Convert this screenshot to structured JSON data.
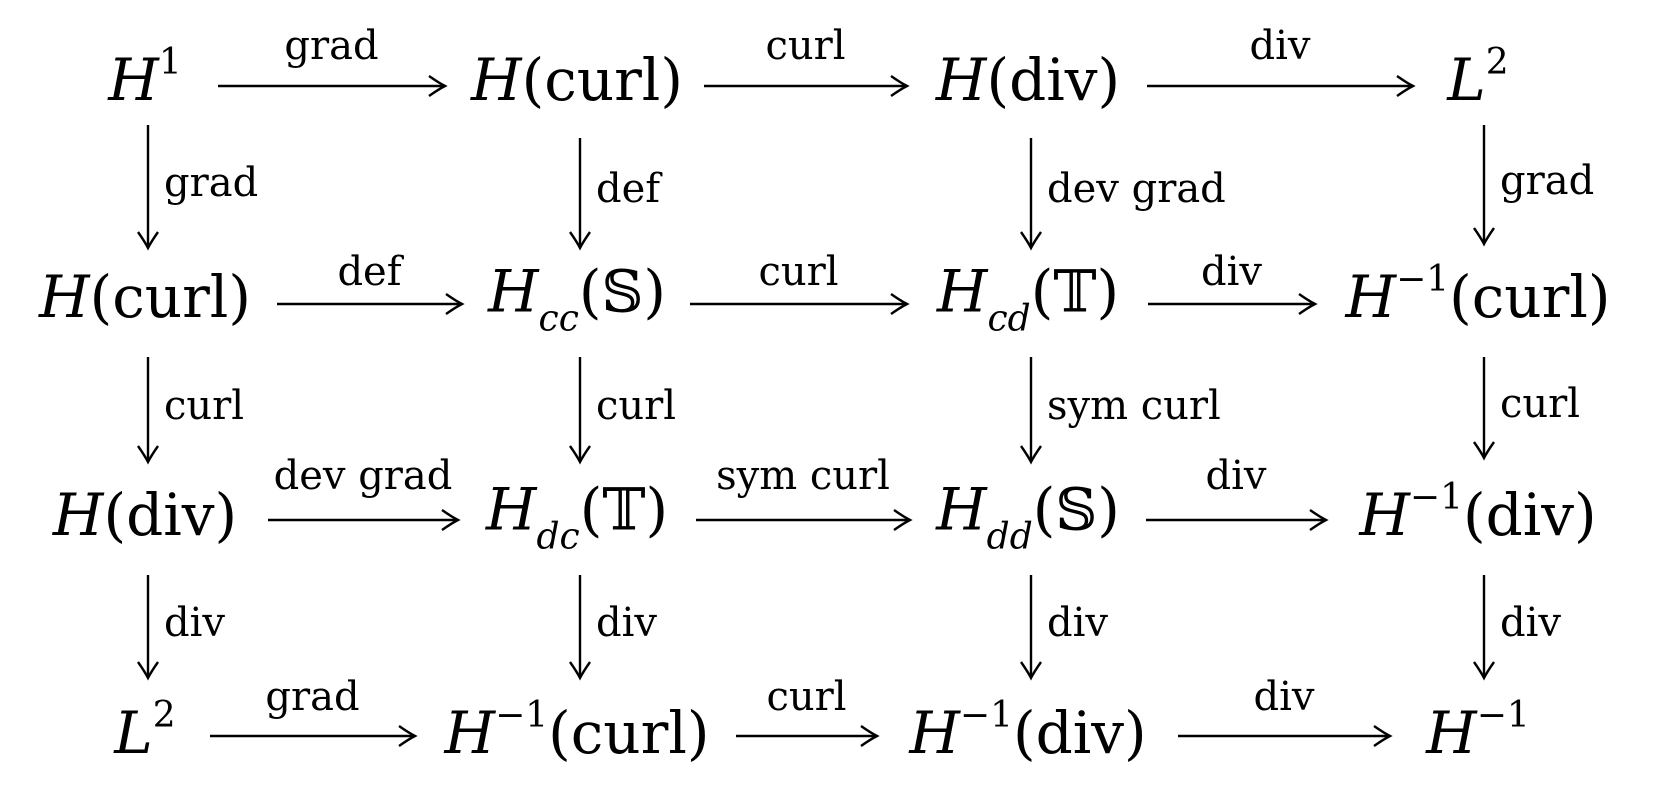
{
  "nodes": [
    {
      "id": "n00",
      "parts": [
        [
          "i",
          "H"
        ],
        [
          "sup",
          "1"
        ]
      ]
    },
    {
      "id": "n01",
      "parts": [
        [
          "i",
          "H"
        ],
        [
          "r",
          "(curl)"
        ]
      ]
    },
    {
      "id": "n02",
      "parts": [
        [
          "i",
          "H"
        ],
        [
          "r",
          "(div)"
        ]
      ]
    },
    {
      "id": "n03",
      "parts": [
        [
          "i",
          "L"
        ],
        [
          "sup",
          "2"
        ]
      ]
    },
    {
      "id": "n10",
      "parts": [
        [
          "i",
          "H"
        ],
        [
          "r",
          "(curl)"
        ]
      ]
    },
    {
      "id": "n11",
      "parts": [
        [
          "i",
          "H"
        ],
        [
          "sub",
          "cc"
        ],
        [
          "r",
          "(𝕊)"
        ]
      ]
    },
    {
      "id": "n12",
      "parts": [
        [
          "i",
          "H"
        ],
        [
          "sub",
          "cd"
        ],
        [
          "r",
          "(𝕋)"
        ]
      ]
    },
    {
      "id": "n13",
      "parts": [
        [
          "i",
          "H"
        ],
        [
          "sup",
          "−1"
        ],
        [
          "r",
          "(curl)"
        ]
      ]
    },
    {
      "id": "n20",
      "parts": [
        [
          "i",
          "H"
        ],
        [
          "r",
          "(div)"
        ]
      ]
    },
    {
      "id": "n21",
      "parts": [
        [
          "i",
          "H"
        ],
        [
          "sub",
          "dc"
        ],
        [
          "r",
          "(𝕋)"
        ]
      ]
    },
    {
      "id": "n22",
      "parts": [
        [
          "i",
          "H"
        ],
        [
          "sub",
          "dd"
        ],
        [
          "r",
          "(𝕊)"
        ]
      ]
    },
    {
      "id": "n23",
      "parts": [
        [
          "i",
          "H"
        ],
        [
          "sup",
          "−1"
        ],
        [
          "r",
          "(div)"
        ]
      ]
    },
    {
      "id": "n30",
      "parts": [
        [
          "i",
          "L"
        ],
        [
          "sup",
          "2"
        ]
      ]
    },
    {
      "id": "n31",
      "parts": [
        [
          "i",
          "H"
        ],
        [
          "sup",
          "−1"
        ],
        [
          "r",
          "(curl)"
        ]
      ]
    },
    {
      "id": "n32",
      "parts": [
        [
          "i",
          "H"
        ],
        [
          "sup",
          "−1"
        ],
        [
          "r",
          "(div)"
        ]
      ]
    },
    {
      "id": "n33",
      "parts": [
        [
          "i",
          "H"
        ],
        [
          "sup",
          "−1"
        ]
      ]
    }
  ],
  "h_arrows": [
    {
      "label": "grad"
    },
    {
      "label": "curl"
    },
    {
      "label": "div"
    },
    {
      "label": "def"
    },
    {
      "label": "curl"
    },
    {
      "label": "div"
    },
    {
      "label": "dev grad"
    },
    {
      "label": "sym curl"
    },
    {
      "label": "div"
    },
    {
      "label": "grad"
    },
    {
      "label": "curl"
    },
    {
      "label": "div"
    }
  ],
  "v_arrows": [
    {
      "label": "grad"
    },
    {
      "label": "def"
    },
    {
      "label": "dev grad"
    },
    {
      "label": "grad"
    },
    {
      "label": "curl"
    },
    {
      "label": "curl"
    },
    {
      "label": "sym curl"
    },
    {
      "label": "curl"
    },
    {
      "label": "div"
    },
    {
      "label": "div"
    },
    {
      "label": "div"
    },
    {
      "label": "div"
    }
  ]
}
